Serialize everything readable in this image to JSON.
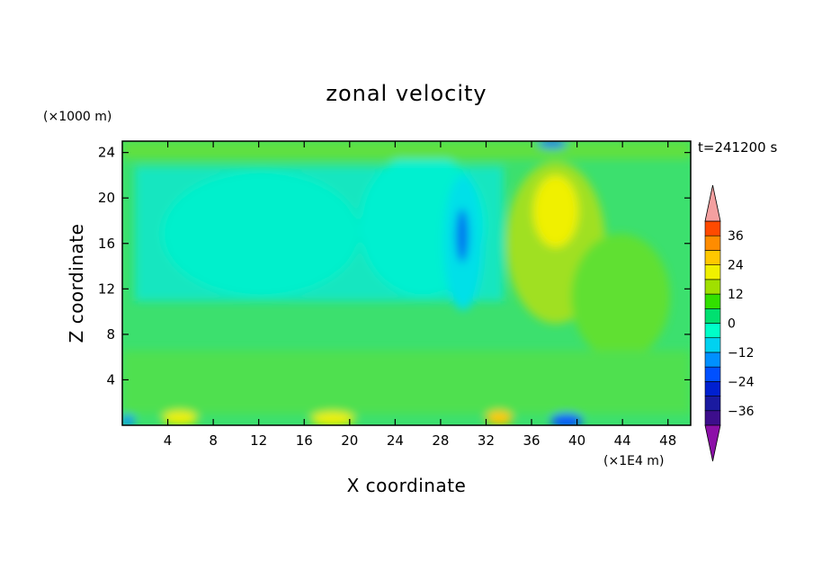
{
  "chart_data": {
    "type": "heatmap",
    "title": "zonal velocity",
    "xlabel": "X coordinate",
    "ylabel": "Z coordinate",
    "x_unit": "(×1E4 m)",
    "y_unit": "(×1000 m)",
    "time_label": "t=241200 s",
    "xlim": [
      0,
      50
    ],
    "ylim": [
      0,
      25
    ],
    "x_ticks": [
      4,
      8,
      12,
      16,
      20,
      24,
      28,
      32,
      36,
      40,
      44,
      48
    ],
    "y_ticks": [
      4,
      8,
      12,
      16,
      20,
      24
    ],
    "x_tick_labels": [
      "4",
      "8",
      "12",
      "16",
      "20",
      "24",
      "28",
      "32",
      "36",
      "40",
      "44",
      "48"
    ],
    "y_tick_labels": [
      "4",
      "8",
      "12",
      "16",
      "20",
      "24"
    ],
    "colorbar": {
      "levels": [
        -42,
        -36,
        -30,
        -24,
        -18,
        -12,
        -6,
        0,
        6,
        12,
        18,
        24,
        30,
        36,
        42
      ],
      "labeled_values": [
        36,
        24,
        12,
        0,
        -12,
        -24,
        -36
      ],
      "labels": [
        "36",
        "24",
        "12",
        "0",
        "−12",
        "−24",
        "−36"
      ],
      "colors": [
        "#3d0e8c",
        "#1a1aa0",
        "#0020d0",
        "#0050ff",
        "#0090ff",
        "#00d2f0",
        "#00ffc8",
        "#00e070",
        "#32e000",
        "#a0e000",
        "#f0f000",
        "#ffc800",
        "#ff8c00",
        "#ff4a00",
        "#e01000"
      ],
      "under_color": "#8c10a8",
      "over_color": "#f4a0a0"
    },
    "features": [
      {
        "x": 30,
        "z": 16.5,
        "value": -20,
        "note": "negative core"
      },
      {
        "x": 39,
        "z": 18,
        "value": 14,
        "note": "positive core"
      },
      {
        "x": 41,
        "z": 14,
        "value": 8,
        "note": "positive region"
      },
      {
        "x": 24,
        "z": 14,
        "value": -7,
        "note": "broad negative region"
      },
      {
        "x": 40,
        "z": 0.6,
        "value": -30,
        "note": "surface negative core"
      }
    ]
  }
}
